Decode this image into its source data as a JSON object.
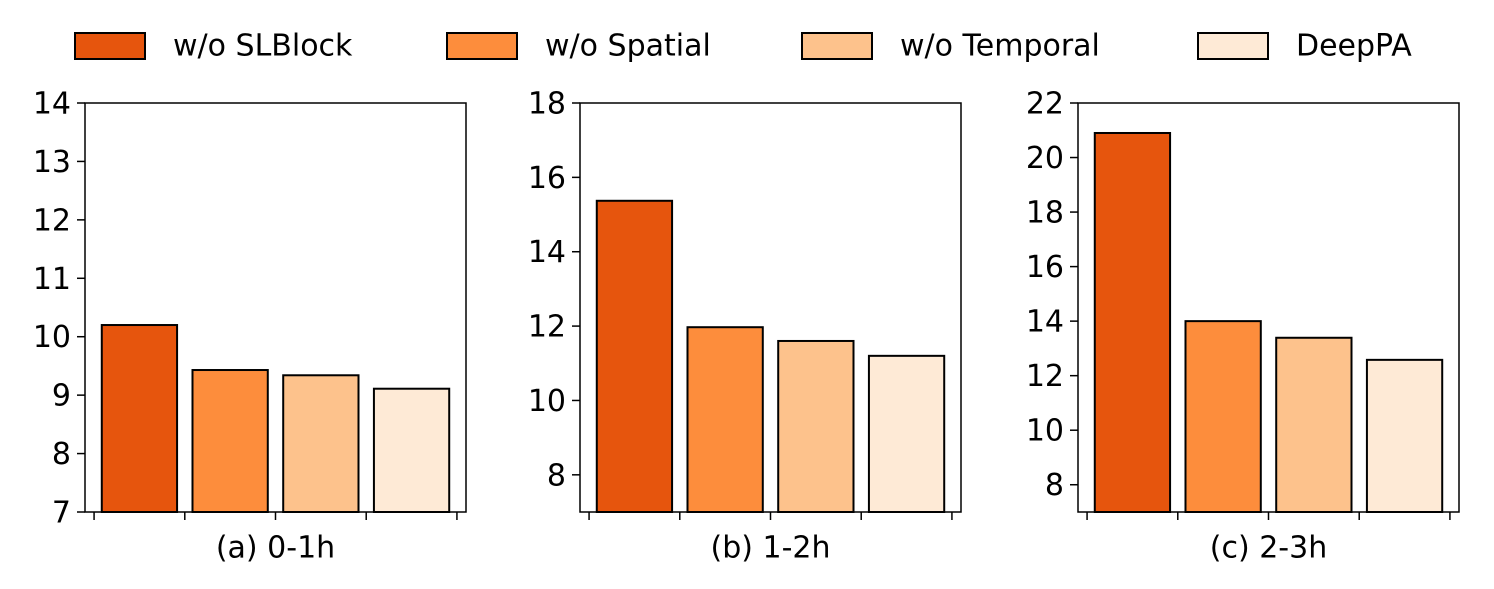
{
  "legend": {
    "names": [
      "w/o SLBlock",
      "w/o Spatial",
      "w/o Temporal",
      "DeepPA"
    ],
    "colors": [
      "#e6550d",
      "#fd8d3c",
      "#fdc28c",
      "#feead6"
    ]
  },
  "chart_data": [
    {
      "type": "bar",
      "xlabel": "(a) 0-1h",
      "values": [
        10.2,
        9.43,
        9.34,
        9.11
      ],
      "ylim": [
        7,
        14
      ],
      "yticks": [
        7,
        8,
        9,
        10,
        11,
        12,
        13,
        14
      ]
    },
    {
      "type": "bar",
      "xlabel": "(b) 1-2h",
      "values": [
        15.37,
        11.97,
        11.6,
        11.2
      ],
      "ylim": [
        7,
        18
      ],
      "yticks": [
        8,
        10,
        12,
        14,
        16,
        18
      ]
    },
    {
      "type": "bar",
      "xlabel": "(c) 2-3h",
      "values": [
        20.9,
        14.0,
        13.39,
        12.58
      ],
      "ylim": [
        7,
        22
      ],
      "yticks": [
        8,
        10,
        12,
        14,
        16,
        18,
        20,
        22
      ]
    }
  ]
}
